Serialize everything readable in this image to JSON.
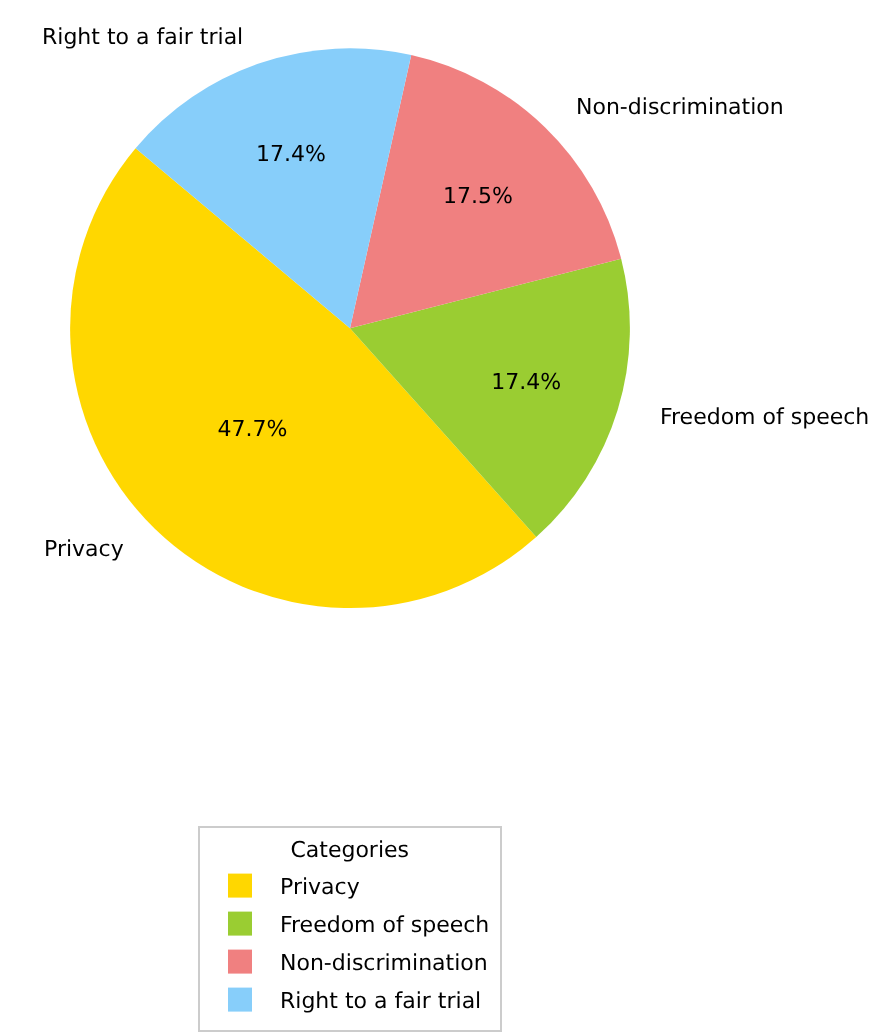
{
  "chart_data": {
    "type": "pie",
    "legend_title": "Categories",
    "legend": "bottom",
    "categories": [
      "Privacy",
      "Freedom of speech",
      "Non-discrimination",
      "Right to a fair trial"
    ],
    "values": [
      47.7,
      17.4,
      17.5,
      17.4
    ],
    "value_labels": [
      "47.7%",
      "17.4%",
      "17.5%",
      "17.4%"
    ],
    "colors": [
      "#ffd700",
      "#9acd32",
      "#f08080",
      "#87cefa"
    ]
  }
}
